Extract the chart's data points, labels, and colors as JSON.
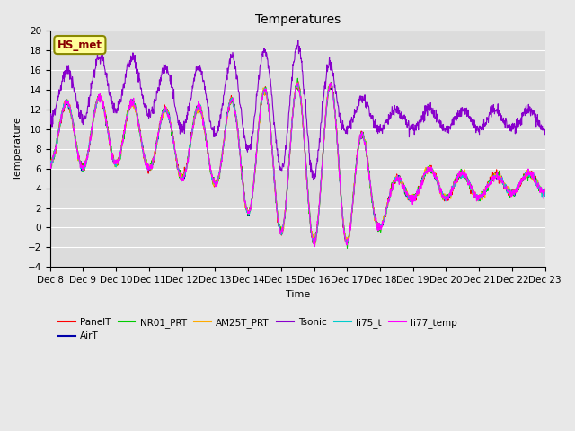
{
  "title": "Temperatures",
  "xlabel": "Time",
  "ylabel": "Temperature",
  "ylim": [
    -4,
    20
  ],
  "x_tick_labels": [
    "Dec 8",
    "Dec 9",
    "Dec 10",
    "Dec 11",
    "Dec 12",
    "Dec 13",
    "Dec 14",
    "Dec 15",
    "Dec 16",
    "Dec 17",
    "Dec 18",
    "Dec 19",
    "Dec 20",
    "Dec 21",
    "Dec 22",
    "Dec 23"
  ],
  "series_colors": {
    "PanelT": "#ff0000",
    "AirT": "#0000aa",
    "NR01_PRT": "#00cc00",
    "AM25T_PRT": "#ffaa00",
    "Tsonic": "#8800cc",
    "li75_t": "#00cccc",
    "li77_temp": "#ff00ff"
  },
  "legend_box_facecolor": "#ffff99",
  "legend_box_edgecolor": "#888800",
  "legend_box_textcolor": "#880000",
  "legend_box_label": "HS_met",
  "background_color": "#dcdcdc",
  "grid_color": "#ffffff",
  "fig_facecolor": "#e8e8e8",
  "title_fontsize": 10,
  "axis_label_fontsize": 8,
  "tick_fontsize": 7.5,
  "legend_fontsize": 7.5,
  "linewidth": 0.8
}
